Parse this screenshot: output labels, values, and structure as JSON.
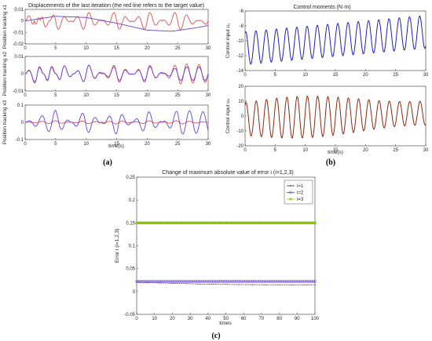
{
  "chart_data": [
    {
      "type": "line",
      "title": "Displacements of the last iteration (the red line refers to the target value)",
      "xlabel": "time(s)",
      "xlim": [
        0,
        30
      ],
      "x_ticks": [
        0,
        5,
        10,
        15,
        20,
        25,
        30
      ],
      "panel_label": "(a)",
      "subplots": [
        {
          "ylabel": "Position tracking x1",
          "ylim": [
            -0.02,
            0.01
          ],
          "y_ticks": [
            "0.01",
            "0",
            "-0.01",
            "-0.02"
          ],
          "series": [
            {
              "color": "#d9534f",
              "points": [
                [
                  0,
                  0.0
                ],
                [
                  1,
                  0.008
                ],
                [
                  2,
                  -0.008
                ],
                [
                  3,
                  0.009
                ],
                [
                  5,
                  -0.009
                ],
                [
                  10,
                  0.009
                ],
                [
                  15,
                  -0.009
                ],
                [
                  20,
                  0.009
                ],
                [
                  25,
                  -0.009
                ],
                [
                  30,
                  0.004
                ]
              ]
            },
            {
              "color": "#6a3fd6",
              "points": [
                [
                  0,
                  0.0
                ],
                [
                  5,
                  0.004
                ],
                [
                  10,
                  0.003
                ],
                [
                  15,
                  -0.002
                ],
                [
                  20,
                  -0.008
                ],
                [
                  24,
                  -0.009
                ],
                [
                  28,
                  -0.006
                ],
                [
                  30,
                  -0.004
                ]
              ]
            }
          ]
        },
        {
          "ylabel": "Position tracking x2",
          "ylim": [
            -0.01,
            0.01
          ],
          "y_ticks": [
            "0.01",
            "0",
            "-0.01"
          ],
          "series": [
            {
              "color": "#d9534f",
              "points": [
                [
                  0,
                  0.0
                ],
                [
                  2,
                  0.006
                ],
                [
                  4,
                  -0.006
                ],
                [
                  6,
                  0.006
                ],
                [
                  10,
                  -0.006
                ],
                [
                  15,
                  0.006
                ],
                [
                  20,
                  -0.006
                ],
                [
                  25,
                  0.006
                ],
                [
                  30,
                  0.005
                ]
              ]
            },
            {
              "color": "#6a3fd6",
              "points": [
                [
                  0,
                  0.0
                ],
                [
                  2,
                  0.007
                ],
                [
                  4,
                  -0.007
                ],
                [
                  6,
                  0.006
                ],
                [
                  10,
                  -0.006
                ],
                [
                  15,
                  0.005
                ],
                [
                  20,
                  -0.005
                ],
                [
                  25,
                  0.004
                ],
                [
                  30,
                  0.004
                ]
              ]
            }
          ]
        },
        {
          "ylabel": "Position tracking x3",
          "ylim": [
            -0.1,
            0.1
          ],
          "y_ticks": [
            "0.1",
            "0",
            "-0.1"
          ],
          "series": [
            {
              "color": "#d9534f",
              "points": [
                [
                  0,
                  0.0
                ],
                [
                  5,
                  0.01
                ],
                [
                  10,
                  -0.01
                ],
                [
                  15,
                  0.01
                ],
                [
                  20,
                  -0.01
                ],
                [
                  25,
                  0.01
                ],
                [
                  30,
                  0.0
                ]
              ]
            },
            {
              "color": "#6a3fd6",
              "points": [
                [
                  0,
                  0.0
                ],
                [
                  5,
                  0.07
                ],
                [
                  10,
                  -0.07
                ],
                [
                  15,
                  0.07
                ],
                [
                  20,
                  -0.07
                ],
                [
                  25,
                  0.07
                ],
                [
                  30,
                  0.06
                ]
              ]
            }
          ]
        }
      ]
    },
    {
      "type": "line",
      "title": "Control moments (N·m)",
      "xlabel": "time(s)",
      "xlim": [
        0,
        30
      ],
      "x_ticks": [
        0,
        5,
        10,
        15,
        20,
        25,
        30
      ],
      "panel_label": "(b)",
      "subplots": [
        {
          "ylabel": "Control input u₁",
          "ylim": [
            -14,
            -6
          ],
          "y_ticks": [
            "-6",
            "-8",
            "-10",
            "-12",
            "-14"
          ],
          "series": [
            {
              "color": "#1f1fbf",
              "points": [
                [
                  0,
                  -8.0
                ],
                [
                  2,
                  -13.5
                ],
                [
                  5,
                  -9.0
                ],
                [
                  10,
                  -12.5
                ],
                [
                  15,
                  -8.3
                ],
                [
                  20,
                  -11.5
                ],
                [
                  25,
                  -7.5
                ],
                [
                  30,
                  -9.5
                ]
              ]
            }
          ]
        },
        {
          "ylabel": "Control input u₂",
          "ylim": [
            -20,
            20
          ],
          "y_ticks": [
            "20",
            "10",
            "0",
            "-10",
            "-20"
          ],
          "series": [
            {
              "color": "#8b2a10",
              "points": [
                [
                  0,
                  10
                ],
                [
                  1,
                  -15
                ],
                [
                  5,
                  5
                ],
                [
                  10,
                  -12
                ],
                [
                  15,
                  8
                ],
                [
                  20,
                  -8
                ],
                [
                  25,
                  12
                ],
                [
                  30,
                  -2
                ]
              ]
            }
          ]
        }
      ]
    },
    {
      "type": "line",
      "title": "Change of maximum absolute value of error  i (i=1,2,3)",
      "xlabel": "times",
      "ylabel": "Error i (i=1,2,3)",
      "xlim": [
        0,
        100
      ],
      "ylim": [
        -0.05,
        0.25
      ],
      "x_ticks": [
        0,
        10,
        20,
        30,
        40,
        50,
        60,
        70,
        80,
        90,
        100
      ],
      "y_ticks": [
        "0.25",
        "0.2",
        "0.15",
        "0.1",
        "0.05",
        "0",
        "-0.05"
      ],
      "legend": "top-right",
      "panel_label": "(c)",
      "series": [
        {
          "name": "i=1",
          "color": "#222222",
          "marker": "dot",
          "values": [
            0.02,
            0.019,
            0.018,
            0.017,
            0.016,
            0.0155,
            0.015,
            0.0148,
            0.0146,
            0.0145,
            0.0145
          ]
        },
        {
          "name": "i=2",
          "color": "#6a3fd6",
          "marker": "circle",
          "values": [
            0.022,
            0.022,
            0.022,
            0.022,
            0.022,
            0.022,
            0.022,
            0.022,
            0.022,
            0.022,
            0.022
          ]
        },
        {
          "name": "i=3",
          "color": "#8fd000",
          "marker": "square",
          "values": [
            0.15,
            0.15,
            0.15,
            0.15,
            0.15,
            0.15,
            0.15,
            0.15,
            0.15,
            0.15,
            0.15
          ]
        }
      ]
    }
  ]
}
